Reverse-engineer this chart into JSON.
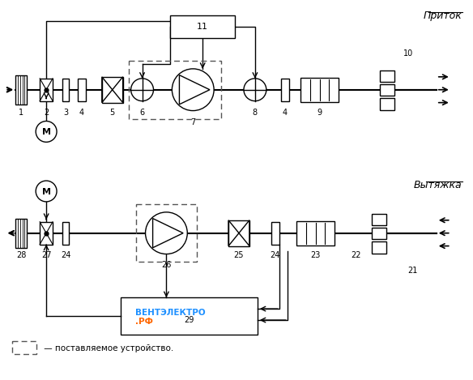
{
  "title_pritok": "Приток",
  "title_vytjazka": "Вытяжка",
  "legend_text": " — поставляемое устройство.",
  "watermark_blue": "ВЕНТЭЛЕКТРО",
  "watermark_orange": ".РФ",
  "watermark_color_blue": "#1e90ff",
  "watermark_color_orange": "#ff6600",
  "bg_color": "#ffffff",
  "line_color": "#000000"
}
